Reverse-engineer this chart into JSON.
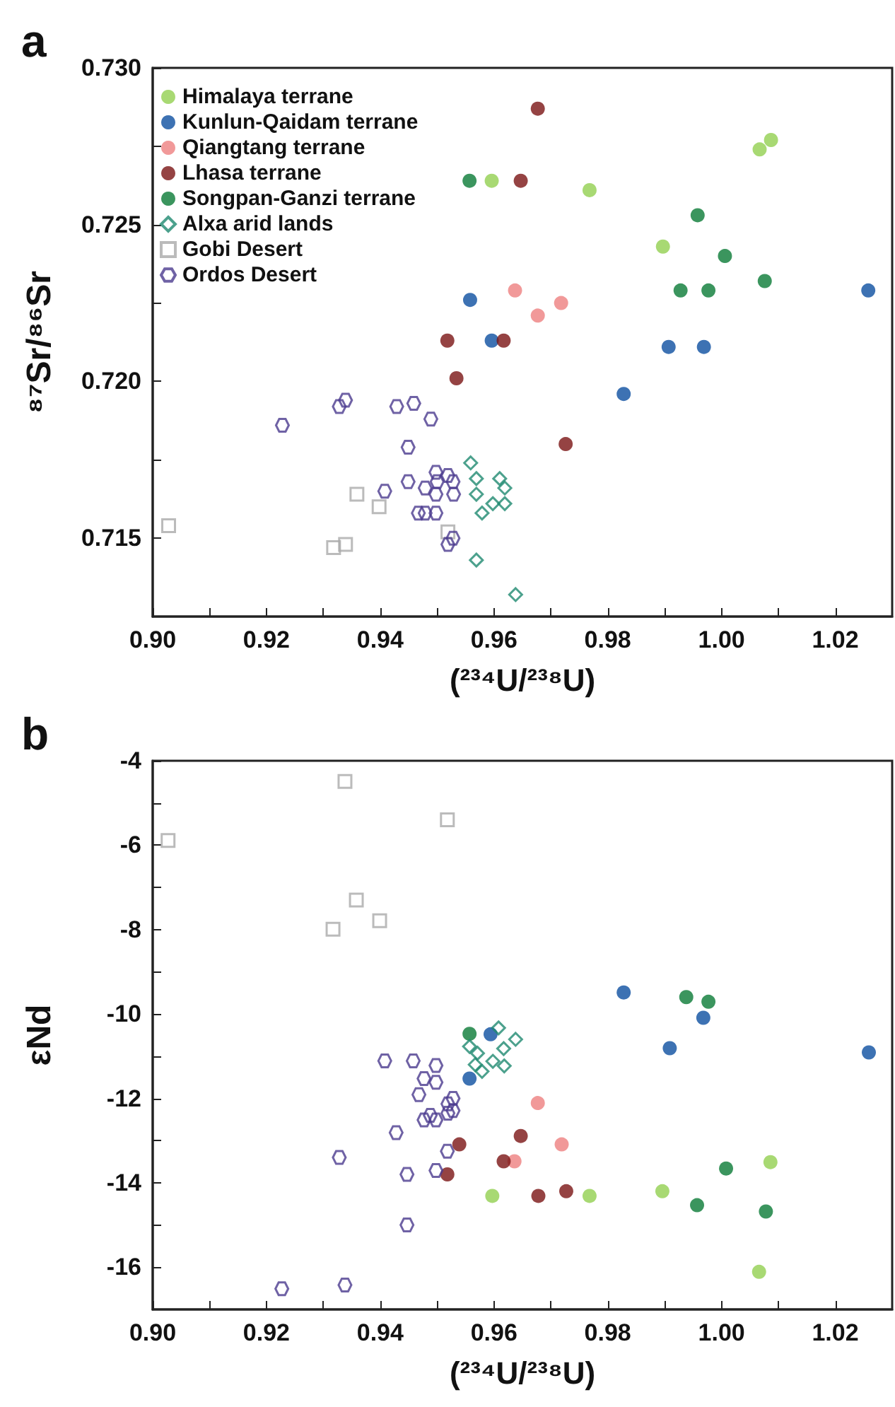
{
  "chart_data": [
    {
      "type": "scatter",
      "title": "a",
      "xlabel": "(²³⁴U/²³⁸U)",
      "ylabel": "⁸⁷Sr/⁸⁶Sr",
      "legend": "top left",
      "xlim": [
        0.9,
        1.03
      ],
      "ylim": [
        0.7125,
        0.73
      ],
      "xticks": [
        {
          "value": 0.9,
          "label": "0.90"
        },
        {
          "value": 0.91,
          "label": null
        },
        {
          "value": 0.92,
          "label": "0.92"
        },
        {
          "value": 0.93,
          "label": null
        },
        {
          "value": 0.94,
          "label": "0.94"
        },
        {
          "value": 0.95,
          "label": null
        },
        {
          "value": 0.96,
          "label": "0.96"
        },
        {
          "value": 0.97,
          "label": null
        },
        {
          "value": 0.98,
          "label": "0.98"
        },
        {
          "value": 0.99,
          "label": null
        },
        {
          "value": 1.0,
          "label": "1.00"
        },
        {
          "value": 1.01,
          "label": null
        },
        {
          "value": 1.02,
          "label": "1.02"
        }
      ],
      "yticks": [
        0.715,
        {
          "value": 0.7175,
          "label": null
        },
        {
          "value": 0.72,
          "label": "0.720"
        },
        {
          "value": 0.7225,
          "label": null
        },
        0.725,
        {
          "value": 0.7275,
          "label": null
        },
        {
          "value": 0.73,
          "label": "0.730"
        }
      ],
      "series": [
        {
          "name": "Himalaya terrane",
          "color": "#92d050",
          "marker": "circle",
          "x": [
            0.9596,
            0.9768,
            0.9897,
            1.0067,
            1.0087
          ],
          "values": [
            0.7264,
            0.7261,
            0.7243,
            0.7274,
            0.7277
          ]
        },
        {
          "name": "Kunlun-Qaidam terrane",
          "color": "#0d4fa0",
          "marker": "circle",
          "x": [
            0.9558,
            0.9596,
            0.9828,
            0.9907,
            0.9969,
            1.0258
          ],
          "values": [
            0.7226,
            0.7213,
            0.7196,
            0.7211,
            0.7211,
            0.7229
          ]
        },
        {
          "name": "Qiangtang terrane",
          "color": "#ee7f7f",
          "marker": "circle",
          "x": [
            0.9637,
            0.9677,
            0.9718
          ],
          "values": [
            0.7229,
            0.7221,
            0.7225
          ]
        },
        {
          "name": "Lhasa terrane",
          "color": "#7b1414",
          "marker": "circle",
          "x": [
            0.9518,
            0.9534,
            0.9617,
            0.9647,
            0.9677,
            0.9726
          ],
          "values": [
            0.7213,
            0.7201,
            0.7213,
            0.7264,
            0.7287,
            0.718
          ]
        },
        {
          "name": "Songpan-Ganzi terrane",
          "color": "#0a7a36",
          "marker": "circle",
          "x": [
            0.9557,
            0.9928,
            0.9958,
            0.9977,
            1.0006,
            1.0076
          ],
          "values": [
            0.7264,
            0.7229,
            0.7253,
            0.7229,
            0.724,
            0.7232
          ]
        },
        {
          "name": "Alxa arid lands",
          "color": "#1f8a70",
          "marker": "diamond",
          "x": [
            0.9559,
            0.9569,
            0.961,
            0.9569,
            0.9619,
            0.9598,
            0.9579,
            0.9619,
            0.9569,
            0.9638
          ],
          "values": [
            0.7174,
            0.7169,
            0.7169,
            0.7164,
            0.7166,
            0.7161,
            0.7158,
            0.7161,
            0.7143,
            0.7132
          ]
        },
        {
          "name": "Gobi Desert",
          "color": "#aaaaaa",
          "marker": "square",
          "x": [
            0.9028,
            0.9318,
            0.9339,
            0.9359,
            0.9398,
            0.9519
          ],
          "values": [
            0.7154,
            0.7147,
            0.7148,
            0.7164,
            0.716,
            0.7152
          ]
        },
        {
          "name": "Ordos Desert",
          "color": "#4b3b8f",
          "x": [
            0.9228,
            0.9328,
            0.9339,
            0.9429,
            0.9459,
            0.9489,
            0.9449,
            0.9449,
            0.9408,
            0.9479,
            0.9498,
            0.95,
            0.9519,
            0.9528,
            0.9529,
            0.9498,
            0.9467,
            0.9479,
            0.9498,
            0.9528,
            0.9519
          ],
          "values": [
            0.7186,
            0.7192,
            0.7194,
            0.7192,
            0.7193,
            0.7188,
            0.7179,
            0.7168,
            0.7165,
            0.7166,
            0.7171,
            0.7168,
            0.717,
            0.7168,
            0.7164,
            0.7164,
            0.7158,
            0.7158,
            0.7158,
            0.715,
            0.7148
          ]
        }
      ]
    },
    {
      "type": "scatter",
      "title": "b",
      "xlabel": "(²³⁴U/²³⁸U)",
      "ylabel": "εNd",
      "xlim": [
        0.9,
        1.03
      ],
      "ylim": [
        -17,
        -4
      ],
      "xticks": [
        {
          "value": 0.9,
          "label": "0.90"
        },
        {
          "value": 0.91,
          "label": null
        },
        {
          "value": 0.92,
          "label": "0.92"
        },
        {
          "value": 0.93,
          "label": null
        },
        {
          "value": 0.94,
          "label": "0.94"
        },
        {
          "value": 0.95,
          "label": null
        },
        {
          "value": 0.96,
          "label": "0.96"
        },
        {
          "value": 0.97,
          "label": null
        },
        {
          "value": 0.98,
          "label": "0.98"
        },
        {
          "value": 0.99,
          "label": null
        },
        {
          "value": 1.0,
          "label": "1.00"
        },
        {
          "value": 1.01,
          "label": null
        },
        {
          "value": 1.02,
          "label": "1.02"
        }
      ],
      "yticks": [
        -16,
        {
          "value": -15,
          "label": null
        },
        -14,
        {
          "value": -13,
          "label": null
        },
        -12,
        {
          "value": -11,
          "label": null
        },
        -10,
        {
          "value": -9,
          "label": null
        },
        -8,
        {
          "value": -7,
          "label": null
        },
        -6,
        {
          "value": -5,
          "label": null
        },
        -4
      ],
      "series": [
        {
          "color": "#92d050",
          "marker": "circle",
          "x": [
            0.9597,
            0.9768,
            0.9896,
            1.0086,
            1.0066
          ],
          "values": [
            -14.31,
            -14.31,
            -14.2,
            -13.51,
            -16.11
          ]
        },
        {
          "color": "#0d4fa0",
          "marker": "circle",
          "x": [
            0.9594,
            0.9557,
            0.9828,
            0.9968,
            0.9909,
            1.0259
          ],
          "values": [
            -10.48,
            -11.53,
            -9.49,
            -10.09,
            -10.81,
            -10.91
          ]
        },
        {
          "color": "#ee7f7f",
          "marker": "circle",
          "x": [
            0.9636,
            0.9677,
            0.9719
          ],
          "values": [
            -13.49,
            -12.11,
            -13.09
          ]
        },
        {
          "color": "#7b1414",
          "marker": "circle",
          "x": [
            0.9539,
            0.9518,
            0.9617,
            0.9647,
            0.9678,
            0.9727
          ],
          "values": [
            -13.09,
            -13.8,
            -13.49,
            -12.89,
            -14.31,
            -14.2
          ]
        },
        {
          "color": "#0a7a36",
          "marker": "circle",
          "x": [
            0.9557,
            0.9938,
            0.9977,
            1.0008,
            0.9957,
            1.0078
          ],
          "values": [
            -10.47,
            -9.6,
            -9.71,
            -13.66,
            -14.53,
            -14.68
          ]
        },
        {
          "color": "#1f8a70",
          "marker": "diamond",
          "x": [
            0.9608,
            0.9557,
            0.9638,
            0.9571,
            0.9617,
            0.9567,
            0.9598,
            0.9618,
            0.9579
          ],
          "values": [
            -10.33,
            -10.77,
            -10.6,
            -10.93,
            -10.82,
            -11.2,
            -11.12,
            -11.23,
            -11.36
          ]
        },
        {
          "color": "#aaaaaa",
          "marker": "square",
          "x": [
            0.9027,
            0.9338,
            0.9518,
            0.9358,
            0.9399,
            0.9317
          ],
          "values": [
            -5.89,
            -4.49,
            -5.4,
            -7.3,
            -7.79,
            -7.99
          ]
        },
        {
          "color": "#4b3b8f",
          "x": [
            0.9227,
            0.9338,
            0.9447,
            0.9328,
            0.9428,
            0.9447,
            0.9498,
            0.9518,
            0.9408,
            0.9458,
            0.9498,
            0.9477,
            0.9498,
            0.9468,
            0.9528,
            0.9519,
            0.9528,
            0.9519,
            0.9488,
            0.9477,
            0.9498
          ],
          "values": [
            -16.51,
            -16.42,
            -15.0,
            -13.4,
            -12.81,
            -13.8,
            -13.71,
            -13.25,
            -11.11,
            -11.11,
            -11.22,
            -11.53,
            -11.62,
            -11.91,
            -12.0,
            -12.13,
            -12.29,
            -12.35,
            -12.4,
            -12.51,
            -12.51
          ]
        }
      ]
    }
  ]
}
